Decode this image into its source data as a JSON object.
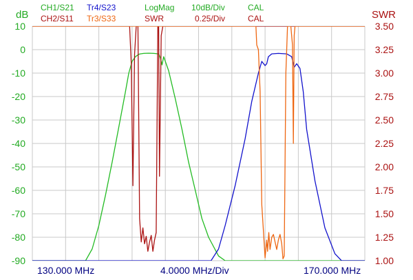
{
  "header": {
    "ch1": "CH1/S21",
    "ch2": "CH2/S11",
    "tr4": "Tr4/S23",
    "tr3": "Tr3/S33",
    "fmt1": "LogMag",
    "fmt2": "SWR",
    "scale1": "10dB/Div",
    "scale2": "0.25/Div",
    "cal1": "CAL",
    "cal2": "CAL"
  },
  "axes": {
    "left_unit": "dB",
    "right_unit": "SWR",
    "left_ticks": [
      "10",
      "0",
      "-10",
      "-20",
      "-30",
      "-40",
      "-50",
      "-60",
      "-70",
      "-80",
      "-90"
    ],
    "right_ticks": [
      "3.50",
      "3.25",
      "3.00",
      "2.75",
      "2.50",
      "2.25",
      "2.00",
      "1.75",
      "1.50",
      "1.25",
      "1.00"
    ],
    "x_start": "130.000 MHz",
    "x_div": "4.0000 MHz/Div",
    "x_stop": "170.000 MHz"
  },
  "colors": {
    "s21": "#22bb22",
    "s11": "#aa1111",
    "s23": "#1111cc",
    "s33": "#ee6611",
    "left_axis": "#22aa22",
    "right_axis": "#aa1111",
    "freq_label": "#000080",
    "grid": "#c8c8c8"
  },
  "chart_data": {
    "type": "line",
    "grid": true,
    "x_unit": "MHz",
    "xlim": [
      130,
      170
    ],
    "ylim_left_db": [
      -90,
      10
    ],
    "ylim_right_swr": [
      1.0,
      3.5
    ],
    "series": [
      {
        "name": "CH1/S21",
        "axis": "left",
        "x": [
          130,
          136.4,
          137.2,
          138,
          138.8,
          139.6,
          140.4,
          141.2,
          141.6,
          142,
          142.4,
          142.8,
          143,
          143.4,
          144,
          144.6,
          145.2,
          145.4,
          145.6,
          145.8,
          146.4,
          147.2,
          148,
          148.8,
          149.6,
          150.4,
          151.2,
          152.4,
          153.2,
          170
        ],
        "values": [
          -90,
          -90,
          -85,
          -75,
          -62,
          -48,
          -33,
          -18,
          -10,
          -5,
          -3,
          -2,
          -1.8,
          -1.6,
          -1.5,
          -1.6,
          -1.8,
          -3.5,
          -6.5,
          -3,
          -9,
          -21,
          -34,
          -48,
          -60,
          -72,
          -80,
          -88,
          -90,
          -90
        ]
      },
      {
        "name": "CH2/S11",
        "axis": "right",
        "x": [
          130,
          141.7,
          141.9,
          142.1,
          142.3,
          142.5,
          142.7,
          142.9,
          143.1,
          143.3,
          143.5,
          143.7,
          143.9,
          144.1,
          144.3,
          144.5,
          144.7,
          144.9,
          145.1,
          145.2,
          145.3,
          145.5,
          145.7,
          145.9,
          170
        ],
        "values": [
          3.5,
          3.5,
          3.1,
          1.8,
          3.2,
          3.5,
          3.5,
          1.45,
          1.2,
          1.35,
          1.18,
          1.26,
          1.1,
          1.2,
          1.27,
          1.1,
          1.22,
          1.3,
          3.5,
          3.5,
          1.9,
          3.4,
          3.5,
          3.5,
          3.5
        ]
      },
      {
        "name": "Tr4/S23",
        "axis": "left",
        "x": [
          130,
          151.5,
          152.4,
          153.2,
          154.4,
          155.6,
          156.4,
          157.2,
          157.6,
          158,
          158.2,
          158.4,
          158.8,
          159.6,
          160.6,
          161.2,
          161.5,
          161.8,
          162.2,
          162.6,
          163,
          164,
          165.2,
          166.4,
          167.2,
          170
        ],
        "values": [
          -90,
          -90,
          -85,
          -75,
          -58,
          -38,
          -22,
          -10,
          -5,
          -6.8,
          -6,
          -3,
          -1.8,
          -1.6,
          -1.8,
          -3,
          -7.5,
          -6,
          -8,
          -18,
          -34,
          -56,
          -76,
          -87,
          -90,
          -90
        ]
      },
      {
        "name": "Tr3/S33",
        "axis": "right",
        "x": [
          130,
          156.9,
          157,
          157.2,
          157.4,
          157.6,
          158,
          158.2,
          158.3,
          158.45,
          158.6,
          158.8,
          159,
          159.2,
          159.4,
          159.6,
          159.8,
          160,
          160.15,
          160.3,
          160.5,
          160.7,
          160.9,
          161.1,
          161.3,
          161.4,
          161.5,
          161.6,
          161.7,
          161.8,
          170
        ],
        "values": [
          3.5,
          3.5,
          3.3,
          3.25,
          2.8,
          1.6,
          1.03,
          1.22,
          1.1,
          1.3,
          1.12,
          1.25,
          1.28,
          1.2,
          1.12,
          1.22,
          1.28,
          1.18,
          1.02,
          1.05,
          3.0,
          3.5,
          3.5,
          3.5,
          3.3,
          2.25,
          3.4,
          3.5,
          3.5,
          3.5,
          3.5
        ]
      }
    ]
  }
}
